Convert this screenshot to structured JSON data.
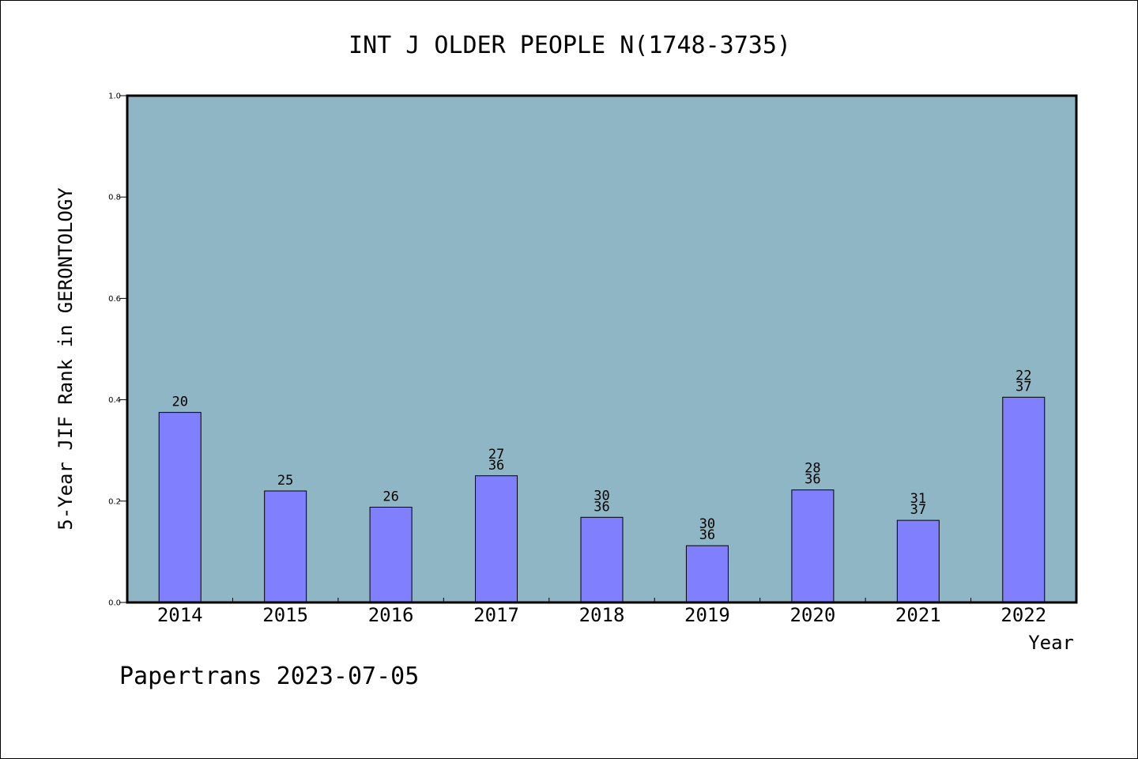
{
  "chart_data": {
    "type": "bar",
    "title": "INT J OLDER PEOPLE N(1748-3735)",
    "xlabel": "Year",
    "ylabel": "5-Year JIF Rank in GERONTOLOGY",
    "ylim": [
      0,
      1.0
    ],
    "yticks": [
      "0.0",
      "0.2",
      "0.4",
      "0.6",
      "0.8",
      "1.0"
    ],
    "categories": [
      "2014",
      "2015",
      "2016",
      "2017",
      "2018",
      "2019",
      "2020",
      "2021",
      "2022"
    ],
    "values": [
      0.375,
      0.22,
      0.188,
      0.25,
      0.168,
      0.112,
      0.222,
      0.162,
      0.405
    ],
    "bar_labels": [
      [
        "20"
      ],
      [
        "25"
      ],
      [
        "26"
      ],
      [
        "27",
        "36"
      ],
      [
        "30",
        "36"
      ],
      [
        "30",
        "36"
      ],
      [
        "28",
        "36"
      ],
      [
        "31",
        "37"
      ],
      [
        "22",
        "37"
      ]
    ],
    "grid": false,
    "colors": {
      "plot_bg": "#8fb6c4",
      "bar": "#8080ff",
      "frame": "#000000"
    }
  },
  "footer": "Papertrans 2023-07-05"
}
